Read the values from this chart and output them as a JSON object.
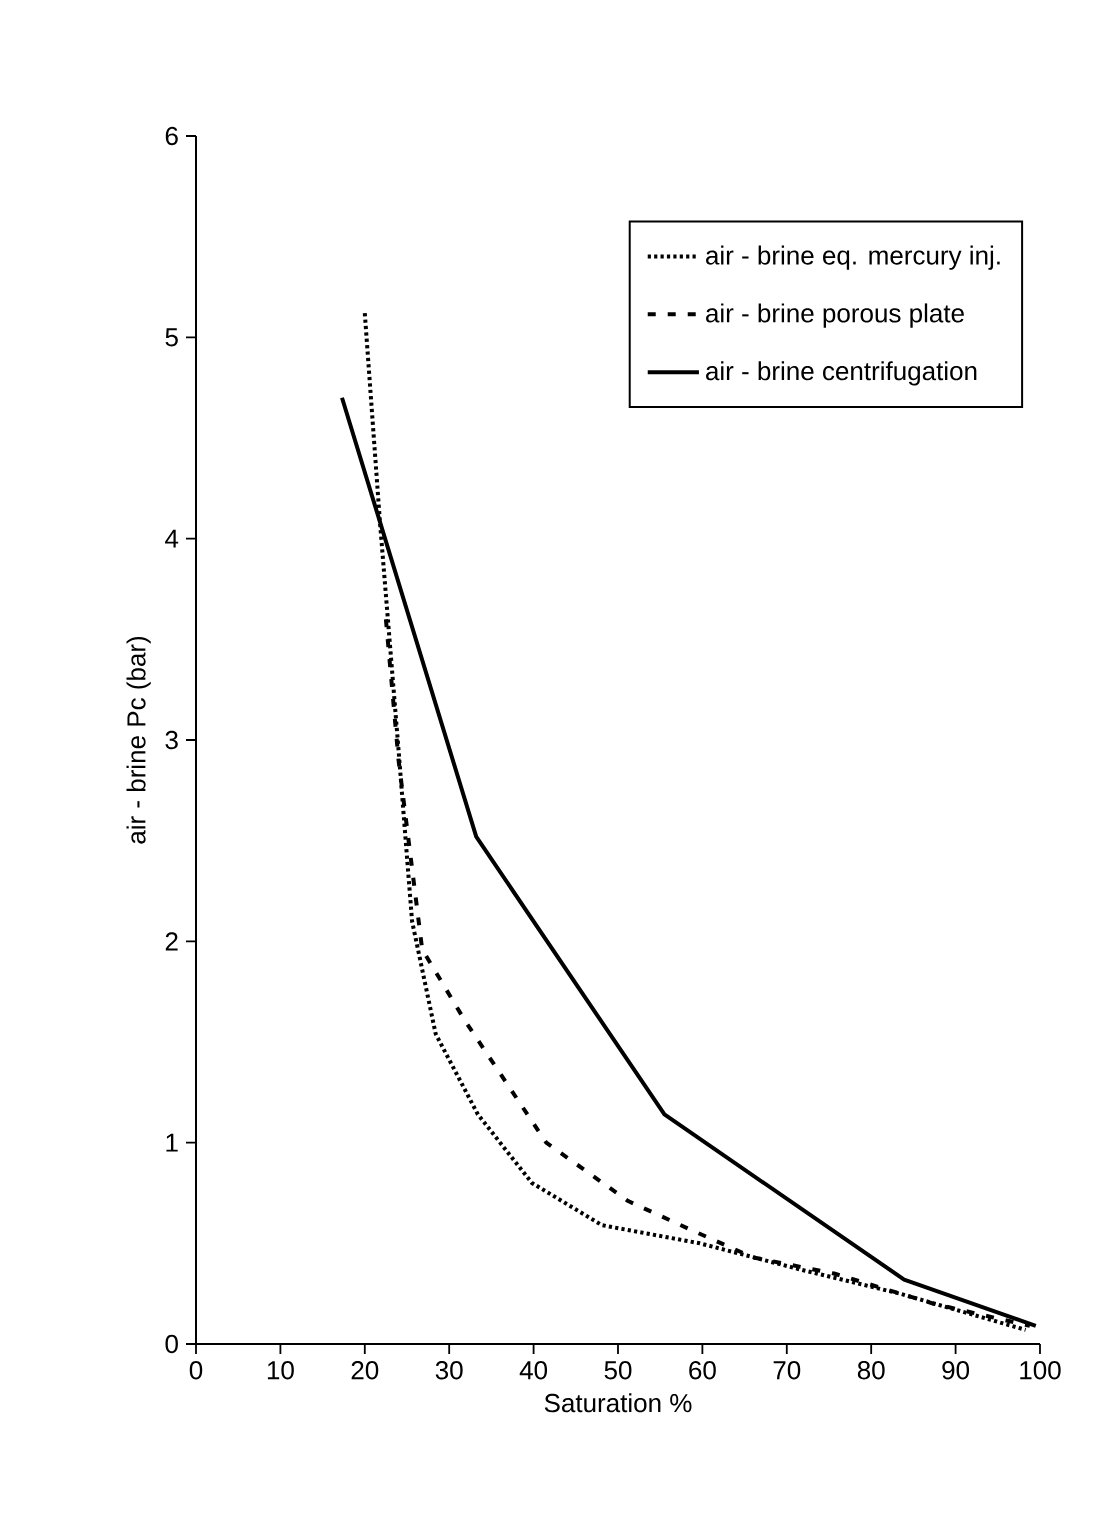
{
  "chart_data": {
    "type": "line",
    "xlabel": "Saturation %",
    "ylabel": "air - brine Pc (bar)",
    "xlim": [
      0,
      100
    ],
    "ylim": [
      0,
      6
    ],
    "xticks": [
      0,
      10,
      20,
      30,
      40,
      50,
      60,
      70,
      80,
      90,
      100
    ],
    "yticks": [
      0,
      1,
      2,
      3,
      4,
      5,
      6
    ],
    "legend": "top right",
    "series": [
      {
        "name": "air - brine eq. mercury inj.",
        "color": "#000000",
        "line_style": "dotted",
        "x": [
          20,
          21.8,
          24,
          25.6,
          28.4,
          33.4,
          39.8,
          48.1,
          59.7,
          71.6,
          83.4,
          98.3
        ],
        "values": [
          5.12,
          4.08,
          2.95,
          2.1,
          1.54,
          1.14,
          0.8,
          0.59,
          0.5,
          0.37,
          0.25,
          0.07
        ]
      },
      {
        "name": "air - brine porous plate",
        "color": "#000000",
        "line_style": "dashed",
        "x": [
          22.5,
          24,
          26.8,
          31.8,
          41.5,
          51.2,
          59,
          66,
          75.6,
          87.4,
          98.8
        ],
        "values": [
          3.6,
          2.9,
          1.96,
          1.61,
          1.0,
          0.71,
          0.56,
          0.43,
          0.35,
          0.2,
          0.09
        ]
      },
      {
        "name": "air - brine centrifugation",
        "color": "#000000",
        "line_style": "solid",
        "x": [
          17.3,
          33.2,
          55.5,
          83.9,
          99.5
        ],
        "values": [
          4.7,
          2.52,
          1.14,
          0.32,
          0.09
        ]
      }
    ]
  }
}
